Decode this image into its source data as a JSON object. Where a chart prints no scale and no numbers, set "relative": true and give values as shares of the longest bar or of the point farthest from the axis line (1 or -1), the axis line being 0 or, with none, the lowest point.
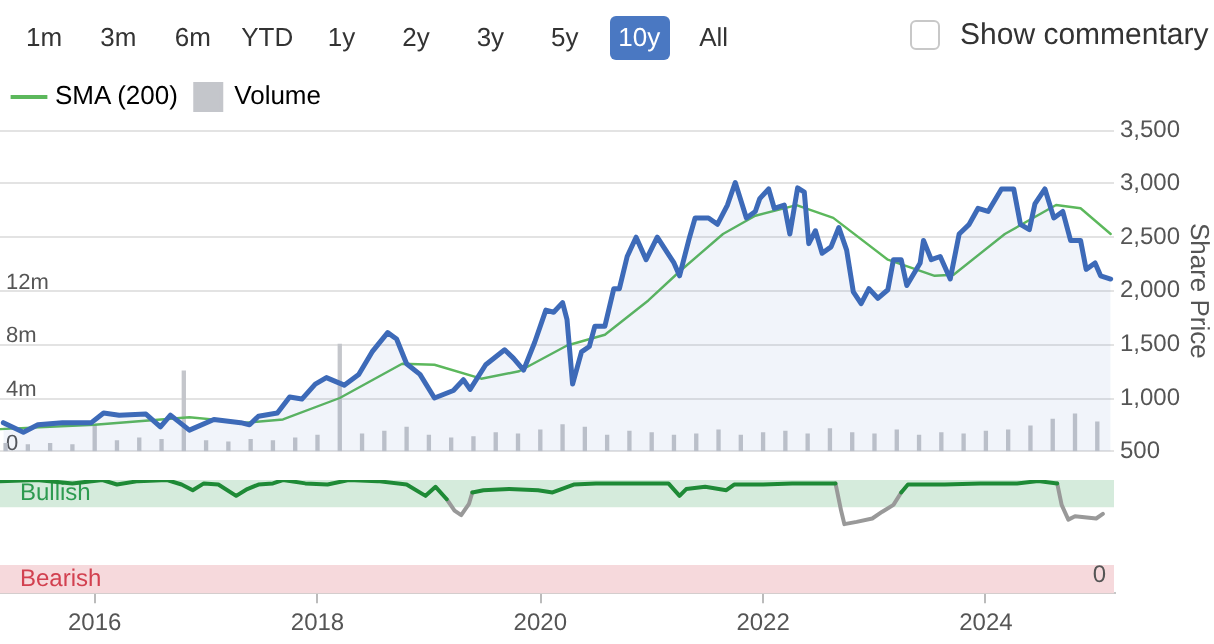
{
  "chart_data": [
    {
      "type": "line",
      "annotations": [
        "1m",
        "3m",
        "6m",
        "YTD",
        "1y",
        "2y",
        "3y",
        "5y",
        "10y",
        "All",
        "Show commentary"
      ],
      "xlim": [
        2015.15,
        2025.15
      ],
      "ylim": [
        0,
        24
      ],
      "yticks": [
        0,
        {
          "value": 4,
          "label": "4m"
        },
        {
          "value": 8,
          "label": "8m"
        },
        {
          "value": 12,
          "label": "12m"
        },
        {
          "value": 16,
          "label": null
        },
        {
          "value": 20,
          "label": null
        },
        {
          "value": 24,
          "label": null
        }
      ],
      "y2lim": [
        500,
        3500
      ],
      "y2ticks": [
        500,
        {
          "value": 1000,
          "label": "1,000"
        },
        {
          "value": 1500,
          "label": "1,500"
        },
        {
          "value": 2000,
          "label": "2,000"
        },
        {
          "value": 2500,
          "label": "2,500"
        },
        {
          "value": 3000,
          "label": "3,000"
        },
        {
          "value": 3500,
          "label": "3,500"
        }
      ],
      "y2label": "Share Price",
      "grid": "y",
      "legend": "top left",
      "tick_labels": "y",
      "marker": "none",
      "series": [
        {
          "type": "area",
          "color": "#3d6ab8",
          "axis": "y2",
          "x": [
            2015.18,
            2015.36,
            2015.49,
            2015.71,
            2015.97,
            2016.08,
            2016.22,
            2016.46,
            2016.59,
            2016.68,
            2016.85,
            2017.07,
            2017.31,
            2017.39,
            2017.47,
            2017.64,
            2017.75,
            2017.86,
            2017.98,
            2018.08,
            2018.24,
            2018.37,
            2018.49,
            2018.63,
            2018.71,
            2018.8,
            2018.92,
            2019.05,
            2019.22,
            2019.31,
            2019.37,
            2019.51,
            2019.68,
            2019.76,
            2019.85,
            2019.95,
            2020.05,
            2020.12,
            2020.2,
            2020.24,
            2020.29,
            2020.37,
            2020.44,
            2020.49,
            2020.58,
            2020.66,
            2020.71,
            2020.78,
            2020.86,
            2020.95,
            2021.05,
            2021.2,
            2021.25,
            2021.34,
            2021.39,
            2021.51,
            2021.59,
            2021.68,
            2021.75,
            2021.85,
            2021.93,
            2021.97,
            2022.05,
            2022.1,
            2022.19,
            2022.24,
            2022.31,
            2022.37,
            2022.41,
            2022.47,
            2022.53,
            2022.61,
            2022.68,
            2022.75,
            2022.81,
            2022.88,
            2022.95,
            2023.03,
            2023.12,
            2023.17,
            2023.24,
            2023.29,
            2023.41,
            2023.44,
            2023.51,
            2023.59,
            2023.68,
            2023.76,
            2023.85,
            2023.93,
            2024.02,
            2024.14,
            2024.25,
            2024.31,
            2024.39,
            2024.44,
            2024.53,
            2024.61,
            2024.69,
            2024.76,
            2024.85,
            2024.9,
            2024.98,
            2025.03,
            2025.12
          ],
          "values": [
            770,
            680,
            750,
            770,
            770,
            860,
            840,
            850,
            730,
            840,
            700,
            800,
            770,
            750,
            830,
            860,
            1010,
            990,
            1130,
            1190,
            1120,
            1220,
            1430,
            1610,
            1550,
            1320,
            1220,
            1000,
            1070,
            1170,
            1080,
            1310,
            1450,
            1370,
            1260,
            1520,
            1820,
            1800,
            1890,
            1730,
            1130,
            1430,
            1480,
            1670,
            1670,
            2020,
            2020,
            2320,
            2500,
            2290,
            2500,
            2260,
            2140,
            2500,
            2680,
            2680,
            2620,
            2800,
            3010,
            2680,
            2740,
            2860,
            2950,
            2770,
            2800,
            2530,
            2960,
            2920,
            2440,
            2560,
            2350,
            2410,
            2590,
            2380,
            1990,
            1880,
            2020,
            1930,
            2010,
            2290,
            2290,
            2050,
            2260,
            2470,
            2290,
            2320,
            2110,
            2530,
            2620,
            2770,
            2740,
            2950,
            2950,
            2620,
            2570,
            2810,
            2950,
            2680,
            2740,
            2470,
            2470,
            2200,
            2260,
            2140,
            2110
          ]
        },
        {
          "type": "line",
          "name": "SMA (200)",
          "color": "#5cb85c",
          "axis": "y2",
          "x": [
            2015.15,
            2016.0,
            2016.85,
            2017.36,
            2017.69,
            2018.2,
            2018.76,
            2019.05,
            2019.47,
            2019.81,
            2020.24,
            2020.58,
            2020.97,
            2021.25,
            2021.64,
            2021.93,
            2022.3,
            2022.63,
            2023.12,
            2023.54,
            2023.71,
            2024.17,
            2024.63,
            2024.85,
            2025.12
          ],
          "values": [
            710,
            750,
            820,
            770,
            800,
            1000,
            1320,
            1310,
            1180,
            1250,
            1490,
            1590,
            1910,
            2180,
            2530,
            2700,
            2800,
            2680,
            2290,
            2140,
            2150,
            2530,
            2800,
            2770,
            2530
          ]
        },
        {
          "type": "bar",
          "name": "Volume",
          "color": "#c4c6cb",
          "x": [
            2015.2,
            2015.4,
            2015.6,
            2015.8,
            2016.0,
            2016.2,
            2016.4,
            2016.6,
            2016.8,
            2017.0,
            2017.2,
            2017.4,
            2017.6,
            2017.8,
            2018.0,
            2018.2,
            2018.4,
            2018.6,
            2018.8,
            2019.0,
            2019.2,
            2019.4,
            2019.6,
            2019.8,
            2020.0,
            2020.2,
            2020.4,
            2020.6,
            2020.8,
            2021.0,
            2021.2,
            2021.4,
            2021.6,
            2021.8,
            2022.0,
            2022.2,
            2022.4,
            2022.6,
            2022.8,
            2023.0,
            2023.2,
            2023.4,
            2023.6,
            2023.8,
            2024.0,
            2024.2,
            2024.4,
            2024.6,
            2024.8,
            2025.0
          ],
          "values": [
            0.6,
            0.5,
            0.6,
            0.5,
            2.0,
            0.8,
            1.0,
            0.9,
            6.0,
            0.8,
            0.7,
            0.9,
            0.8,
            1.0,
            1.2,
            8.0,
            1.3,
            1.5,
            1.8,
            1.2,
            1.0,
            1.1,
            1.4,
            1.3,
            1.6,
            2.0,
            1.8,
            1.2,
            1.5,
            1.4,
            1.2,
            1.3,
            1.6,
            1.2,
            1.4,
            1.5,
            1.3,
            1.7,
            1.4,
            1.3,
            1.6,
            1.2,
            1.4,
            1.3,
            1.5,
            1.6,
            1.9,
            2.4,
            2.8,
            2.2
          ]
        }
      ]
    },
    {
      "type": "line",
      "relative": true,
      "annotations": [
        "0"
      ],
      "xlim": [
        2015.15,
        2025.15
      ],
      "xticks": [
        2016,
        2018,
        2020,
        2022,
        2024
      ],
      "tick_labels": "x",
      "marker": "none",
      "bands": [
        {
          "axis": "y",
          "from": 0.76,
          "to": 1,
          "label": "Bullish",
          "color": "#d5ebdc"
        },
        {
          "axis": "y",
          "from": 0,
          "to": 0.25,
          "label": "Bearish",
          "color": "#f6d9dc"
        }
      ],
      "x": [
        2015.15,
        2015.48,
        2015.8,
        2016.07,
        2016.2,
        2016.39,
        2016.65,
        2016.78,
        2016.88,
        2016.98,
        2017.11,
        2017.27,
        2017.37,
        2017.47,
        2017.6,
        2017.69,
        2017.89,
        2018.09,
        2018.28,
        2018.54,
        2018.8,
        2018.97,
        2019.06,
        2019.16,
        2019.23,
        2019.29,
        2019.36,
        2019.39,
        2019.49,
        2019.72,
        2019.98,
        2020.11,
        2020.3,
        2020.5,
        2020.82,
        2021.15,
        2021.25,
        2021.31,
        2021.48,
        2021.67,
        2021.74,
        2022.0,
        2022.26,
        2022.65,
        2022.7,
        2022.73,
        2022.84,
        2022.98,
        2023.07,
        2023.17,
        2023.24,
        2023.3,
        2023.63,
        2023.95,
        2024.28,
        2024.47,
        2024.64,
        2024.68,
        2024.74,
        2024.8,
        2024.99,
        2025.05
      ],
      "series": [
        {
          "color": "#1e8a36",
          "values": [
            0.99,
            1,
            0.97,
            1,
            0.96,
            0.99,
            1,
            0.96,
            0.91,
            0.97,
            0.96,
            0.86,
            0.92,
            0.96,
            0.97,
            1,
            0.97,
            0.96,
            1,
            0.99,
            0.96,
            0.86,
            0.94,
            0.83,
            null,
            null,
            null,
            0.89,
            0.91,
            0.92,
            0.91,
            0.89,
            0.96,
            0.97,
            0.97,
            0.97,
            0.86,
            0.92,
            0.94,
            0.91,
            0.96,
            0.96,
            0.97,
            0.97,
            null,
            null,
            null,
            null,
            null,
            null,
            0.89,
            0.96,
            0.96,
            0.97,
            0.97,
            0.99,
            0.97,
            null,
            null,
            null,
            null,
            null
          ]
        },
        {
          "color": "#999999",
          "values": [
            null,
            null,
            null,
            null,
            null,
            null,
            null,
            null,
            null,
            null,
            null,
            null,
            null,
            null,
            null,
            null,
            null,
            null,
            null,
            null,
            null,
            null,
            null,
            0.83,
            0.73,
            0.69,
            0.79,
            0.89,
            null,
            null,
            null,
            null,
            null,
            null,
            null,
            null,
            null,
            null,
            null,
            null,
            null,
            null,
            null,
            0.97,
            0.73,
            0.61,
            0.63,
            0.66,
            0.72,
            0.78,
            0.89,
            null,
            null,
            null,
            null,
            null,
            0.97,
            0.78,
            0.65,
            0.68,
            0.66,
            0.7
          ]
        }
      ]
    }
  ]
}
